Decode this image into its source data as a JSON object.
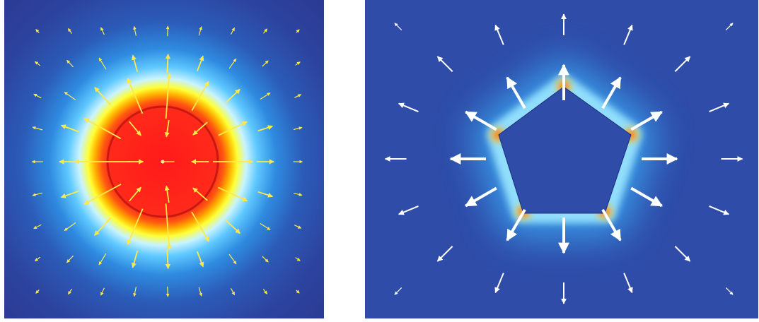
{
  "figure": {
    "panels": [
      {
        "id": "left",
        "description_name": "radial-field-circle",
        "colormap": [
          "#ff1a1a",
          "#ff3b1a",
          "#ff7a00",
          "#ffd000",
          "#ffff33",
          "#9fe8ff",
          "#45bfff",
          "#1f87e6",
          "#2a58b7",
          "#2c3c9a"
        ],
        "arrow_color": "#ffe84a",
        "background_color": "#2c3c9a"
      },
      {
        "id": "right",
        "description_name": "radial-field-pentagon",
        "colormap": [
          "#ff2a2a",
          "#ffcc00",
          "#8fe3ff",
          "#3aaefc",
          "#2a62c2",
          "#2e4ca8"
        ],
        "arrow_color": "#ffffff",
        "background_color": "#2e4ca8"
      }
    ]
  }
}
